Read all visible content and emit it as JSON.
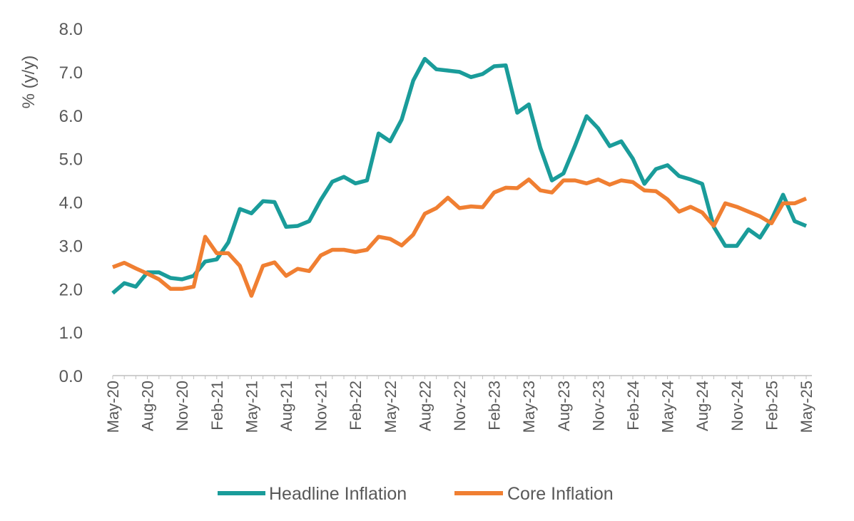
{
  "chart_data": {
    "type": "line",
    "title": "",
    "xlabel": "",
    "ylabel": "% (y/y)",
    "ylim": [
      0,
      8
    ],
    "yticks": [
      "0.0",
      "1.0",
      "2.0",
      "3.0",
      "4.0",
      "5.0",
      "6.0",
      "7.0",
      "8.0"
    ],
    "xtick_labels": [
      "May-20",
      "Aug-20",
      "Nov-20",
      "Feb-21",
      "May-21",
      "Aug-21",
      "Nov-21",
      "Feb-22",
      "May-22",
      "Aug-22",
      "Nov-22",
      "Feb-23",
      "May-23",
      "Aug-23",
      "Nov-23",
      "Feb-24",
      "May-24",
      "Aug-24",
      "Nov-24",
      "Feb-25",
      "May-25"
    ],
    "x_start": "May-20",
    "x_end": "May-25",
    "frequency": "monthly",
    "legend_position": "bottom",
    "grid": false,
    "series": [
      {
        "name": "Headline Inflation",
        "color": "#1a9c9a",
        "values": [
          1.9,
          2.13,
          2.05,
          2.38,
          2.38,
          2.25,
          2.22,
          2.3,
          2.63,
          2.68,
          3.07,
          3.84,
          3.74,
          4.02,
          4.0,
          3.43,
          3.45,
          3.56,
          4.05,
          4.47,
          4.58,
          4.43,
          4.5,
          5.58,
          5.4,
          5.9,
          6.8,
          7.3,
          7.06,
          7.03,
          7.0,
          6.88,
          6.95,
          7.13,
          7.15,
          6.06,
          6.25,
          5.25,
          4.5,
          4.66,
          5.3,
          5.98,
          5.7,
          5.29,
          5.4,
          5.0,
          4.42,
          4.76,
          4.85,
          4.6,
          4.52,
          4.42,
          3.43,
          2.99,
          2.99,
          3.37,
          3.18,
          3.6,
          4.17,
          3.56,
          3.45
        ]
      },
      {
        "name": "Core Inflation",
        "color": "#f07f32",
        "values": [
          2.5,
          2.6,
          2.47,
          2.35,
          2.22,
          2.0,
          2.0,
          2.05,
          3.2,
          2.82,
          2.82,
          2.53,
          1.84,
          2.53,
          2.61,
          2.3,
          2.46,
          2.41,
          2.77,
          2.9,
          2.9,
          2.85,
          2.9,
          3.2,
          3.15,
          3.0,
          3.25,
          3.73,
          3.86,
          4.1,
          3.86,
          3.9,
          3.88,
          4.22,
          4.33,
          4.32,
          4.52,
          4.27,
          4.22,
          4.5,
          4.5,
          4.43,
          4.52,
          4.4,
          4.5,
          4.46,
          4.27,
          4.25,
          4.06,
          3.78,
          3.89,
          3.76,
          3.45,
          3.97,
          3.89,
          3.78,
          3.67,
          3.51,
          3.97,
          3.97,
          4.08
        ]
      }
    ]
  }
}
